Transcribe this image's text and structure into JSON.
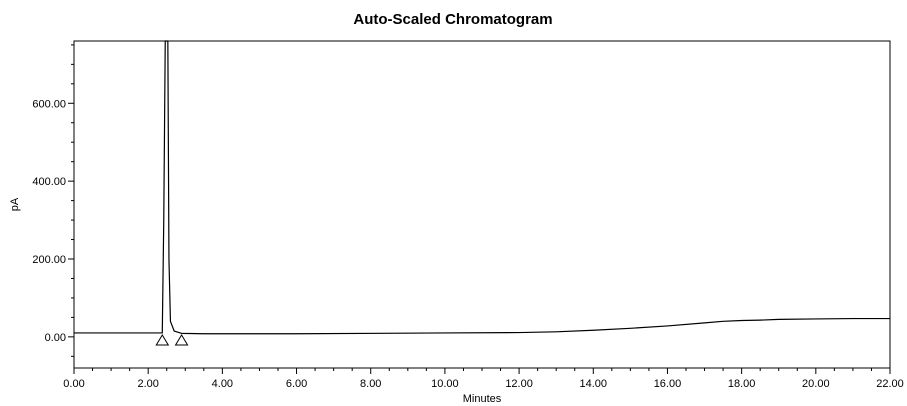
{
  "chart_data": {
    "type": "line",
    "title": "Auto-Scaled Chromatogram",
    "xlabel": "Minutes",
    "ylabel": "pA",
    "xlim": [
      0,
      22
    ],
    "ylim": [
      -80,
      760
    ],
    "x_ticks": [
      "0.00",
      "2.00",
      "4.00",
      "6.00",
      "8.00",
      "10.00",
      "12.00",
      "14.00",
      "16.00",
      "18.00",
      "20.00",
      "22.00"
    ],
    "x_tick_values": [
      0,
      2,
      4,
      6,
      8,
      10,
      12,
      14,
      16,
      18,
      20,
      22
    ],
    "y_ticks": [
      "0.00",
      "200.00",
      "400.00",
      "600.00"
    ],
    "y_tick_values": [
      0,
      200,
      400,
      600
    ],
    "grid": false,
    "series": [
      {
        "x": [
          0,
          1.0,
          2.0,
          2.38,
          2.42,
          2.46,
          2.5,
          2.53,
          2.56,
          2.6,
          2.7,
          2.9,
          3.5,
          6.0,
          10.0,
          12.0,
          13.0,
          14.0,
          15.0,
          16.0,
          17.0,
          17.5,
          18.0,
          18.5,
          19.0,
          20.0,
          21.0,
          22.0
        ],
        "y": [
          10,
          10,
          10,
          10,
          300,
          760,
          760,
          760,
          200,
          40,
          15,
          9,
          8,
          8,
          10,
          11,
          13,
          17,
          22,
          28,
          36,
          40,
          42,
          43,
          45,
          46,
          47,
          47
        ]
      }
    ],
    "markers": [
      {
        "shape": "triangle",
        "x": 2.38,
        "y": -8
      },
      {
        "shape": "triangle",
        "x": 2.9,
        "y": -8
      }
    ],
    "colors": {
      "line": "#000000",
      "axis": "#000000",
      "background": "#ffffff"
    }
  }
}
